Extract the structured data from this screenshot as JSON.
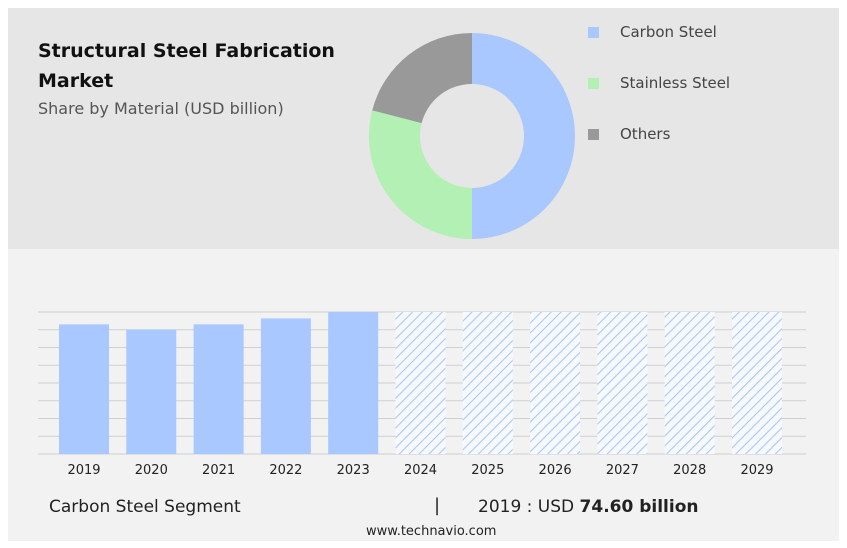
{
  "header": {
    "title": "Structural Steel Fabrication Market",
    "subtitle": "Share by Material (USD billion)"
  },
  "colors": {
    "carbon_steel": "#a8c8ff",
    "stainless_steel": "#b3f0b3",
    "others": "#999999",
    "hatch": "#a8c8ff",
    "grid": "#cfcfcf"
  },
  "chart_data": [
    {
      "type": "pie",
      "donut": true,
      "legend_position": "right",
      "categories": [
        "Carbon Steel",
        "Stainless Steel",
        "Others"
      ],
      "values": [
        50,
        29,
        21
      ]
    },
    {
      "type": "bar",
      "categories": [
        "2019",
        "2020",
        "2021",
        "2022",
        "2023",
        "2024",
        "2025",
        "2026",
        "2027",
        "2028",
        "2029"
      ],
      "values": [
        74.6,
        71.5,
        74.6,
        78.0,
        81.7,
        null,
        null,
        null,
        null,
        null,
        null
      ],
      "forecast_years": [
        "2024",
        "2025",
        "2026",
        "2027",
        "2028",
        "2029"
      ],
      "ylim": [
        0,
        81.7
      ],
      "grid": true,
      "ylabel": "",
      "xlabel": ""
    }
  ],
  "footer": {
    "segment": "Carbon Steel Segment",
    "separator": "|",
    "year_label": "2019 : USD",
    "value": "74.60 billion",
    "source": "www.technavio.com"
  }
}
